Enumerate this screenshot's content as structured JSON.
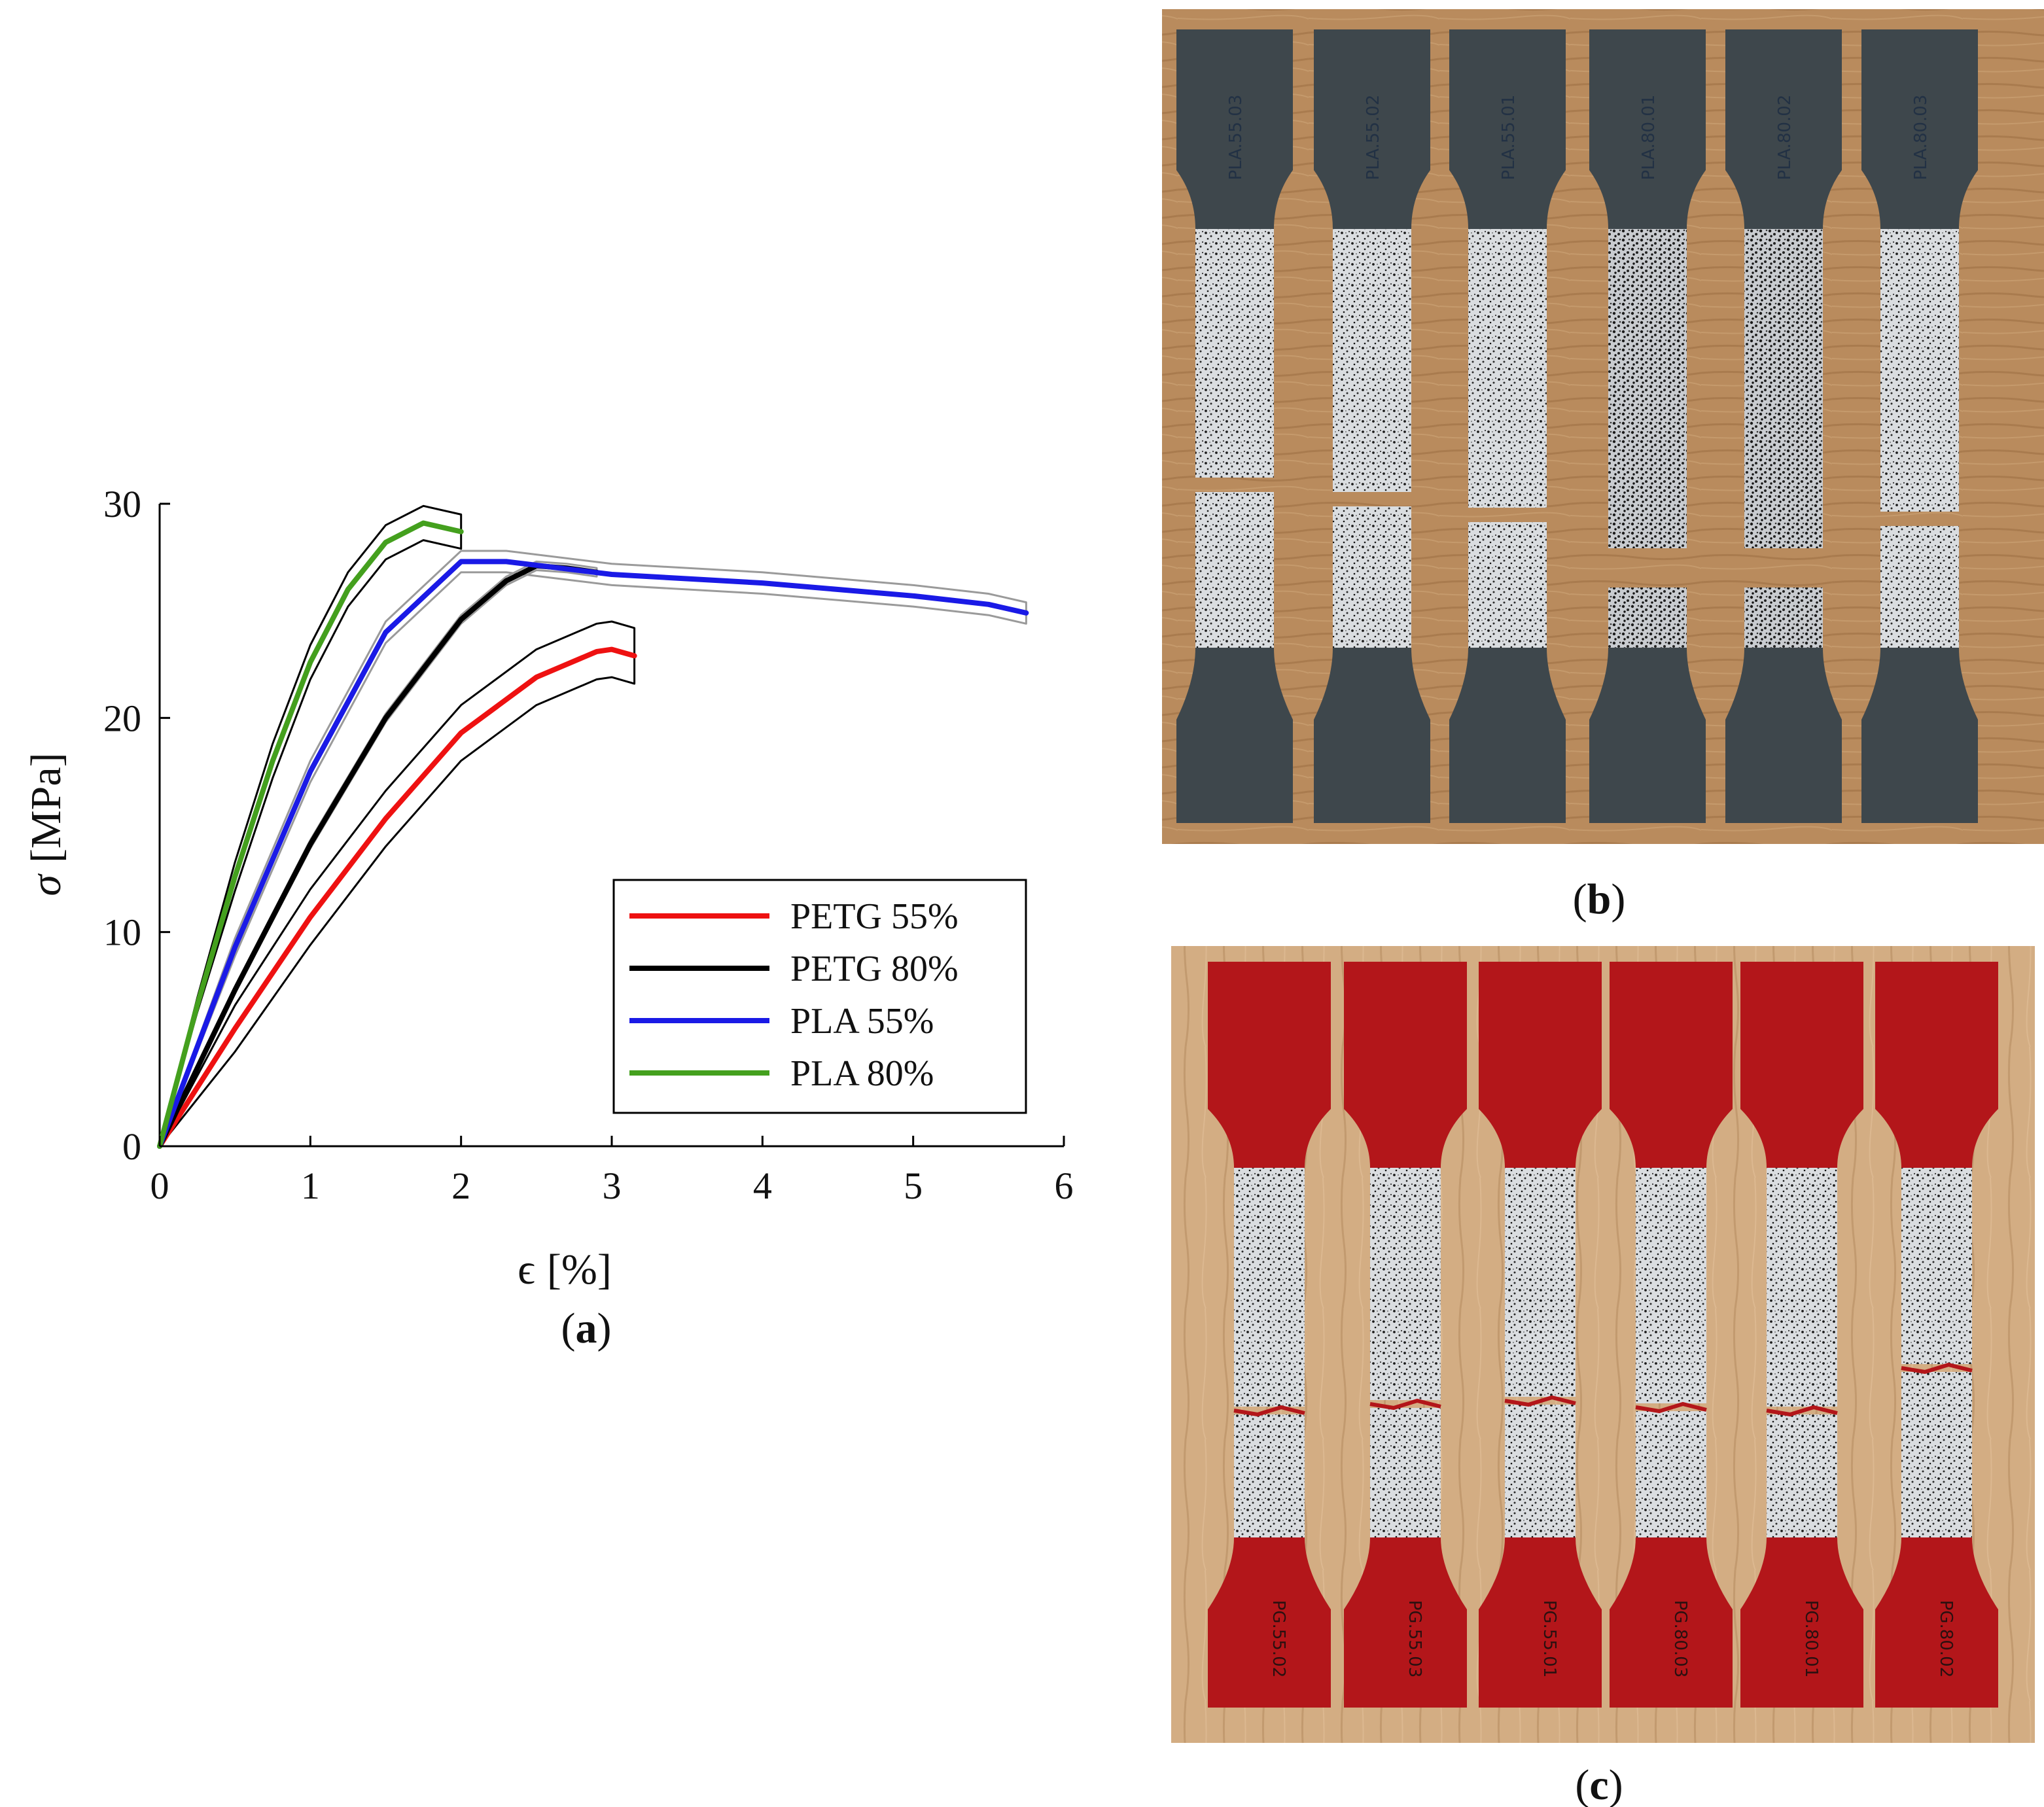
{
  "panels": {
    "a": {
      "caption_open": "(",
      "caption_letter": "a",
      "caption_close": ")"
    },
    "b": {
      "caption_open": "(",
      "caption_letter": "b",
      "caption_close": ")",
      "top_labels": [
        "PLA.55.03",
        "PLA.55.02",
        "PLA.55.01",
        "PLA.80.01",
        "PLA.80.02",
        "PLA.80.03"
      ],
      "specimen_color": "#3e474c",
      "speckle_color": "#d9dde0",
      "background": "#b88a5c"
    },
    "c": {
      "caption_open": "(",
      "caption_letter": "c",
      "caption_close": ")",
      "bottom_labels": [
        "PG.55.02",
        "PG.55.03",
        "PG.55.01",
        "PG.80.03",
        "PG.80.01",
        "PG.80.02"
      ],
      "specimen_color": "#b3161a",
      "speckle_color": "#dcdfe2",
      "background": "#d2ac82"
    }
  },
  "chart_data": {
    "type": "line",
    "xlabel_symbol": "ϵ",
    "xlabel_unit": "[%]",
    "ylabel_symbol": "σ",
    "ylabel_unit": "[MPa]",
    "xlim": [
      0,
      6
    ],
    "ylim": [
      0,
      30
    ],
    "xticks": [
      "0",
      "1",
      "2",
      "3",
      "4",
      "5",
      "6"
    ],
    "yticks": [
      "0",
      "10",
      "20",
      "30"
    ],
    "legend_position": "bottom-right",
    "series": [
      {
        "name": "PETG 55%",
        "color": "#ee1111",
        "band_color": "#000000",
        "x": [
          0,
          0.5,
          1.0,
          1.5,
          2.0,
          2.5,
          2.9,
          3.0,
          3.1,
          3.15
        ],
        "y": [
          0,
          5.5,
          10.7,
          15.3,
          19.3,
          21.9,
          23.1,
          23.2,
          23.0,
          22.9
        ],
        "band": 1.3
      },
      {
        "name": "PETG 80%",
        "color": "#000000",
        "band_color": "#9a9a9a",
        "x": [
          0,
          0.5,
          1.0,
          1.5,
          2.0,
          2.3,
          2.5,
          2.7,
          2.9
        ],
        "y": [
          0,
          7.3,
          14.1,
          20.0,
          24.6,
          26.4,
          27.1,
          27.0,
          26.8
        ],
        "band": 0.2
      },
      {
        "name": "PLA 55%",
        "color": "#1a1ae6",
        "band_color": "#9a9a9a",
        "x": [
          0,
          0.5,
          1.0,
          1.5,
          2.0,
          2.3,
          3.0,
          4.0,
          5.0,
          5.5,
          5.75
        ],
        "y": [
          0,
          9.3,
          17.5,
          24.0,
          27.3,
          27.3,
          26.7,
          26.3,
          25.7,
          25.3,
          24.9
        ],
        "band": 0.5
      },
      {
        "name": "PLA 80%",
        "color": "#44a01e",
        "band_color": "#000000",
        "x": [
          0,
          0.25,
          0.5,
          0.75,
          1.0,
          1.25,
          1.5,
          1.75,
          2.0
        ],
        "y": [
          0,
          6.6,
          12.6,
          18.0,
          22.6,
          26.0,
          28.2,
          29.1,
          28.7
        ],
        "band": 0.8
      }
    ]
  }
}
